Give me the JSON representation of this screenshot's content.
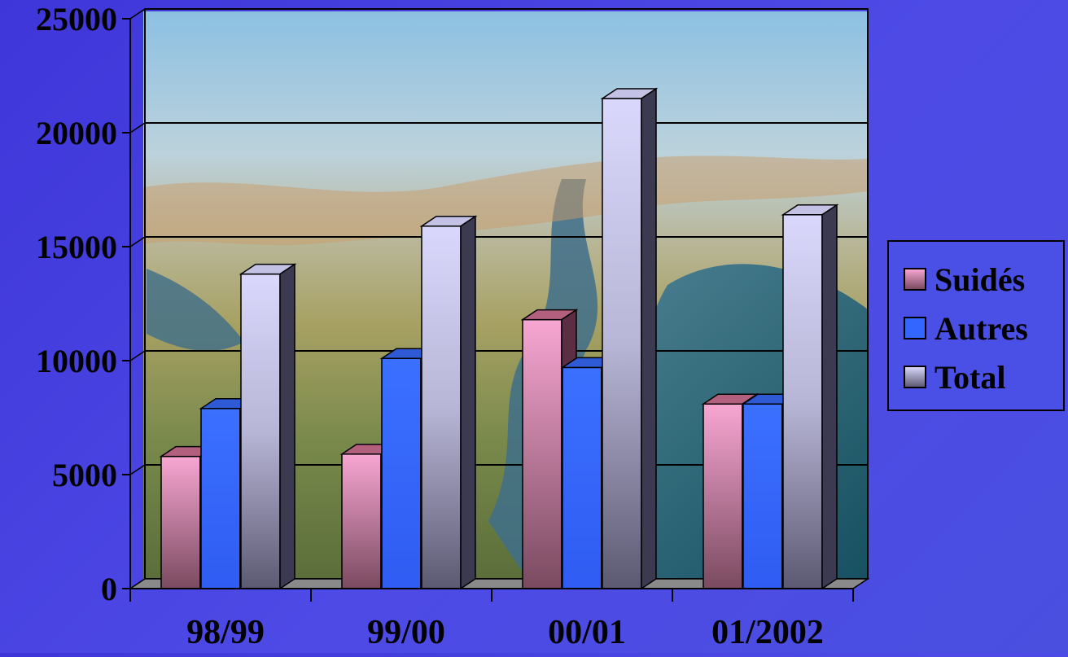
{
  "chart_data": {
    "type": "bar",
    "categories": [
      "98/99",
      "99/00",
      "00/01",
      "01/2002"
    ],
    "series": [
      {
        "name": "Suidés",
        "values": [
          5800,
          5900,
          11800,
          8100
        ],
        "color": "#f29ec9"
      },
      {
        "name": "Autres",
        "values": [
          7900,
          10100,
          9700,
          8100
        ],
        "color": "#3366ff"
      },
      {
        "name": "Total",
        "values": [
          13800,
          15900,
          21500,
          16400
        ],
        "color": "#d2d0f2"
      }
    ],
    "yticks": [
      "0",
      "5000",
      "10000",
      "15000",
      "20000",
      "25000"
    ],
    "ylim": [
      0,
      25000
    ],
    "grid": true,
    "legend_position": "right",
    "style": "3d-columns with aerial landscape photo in plot area"
  }
}
